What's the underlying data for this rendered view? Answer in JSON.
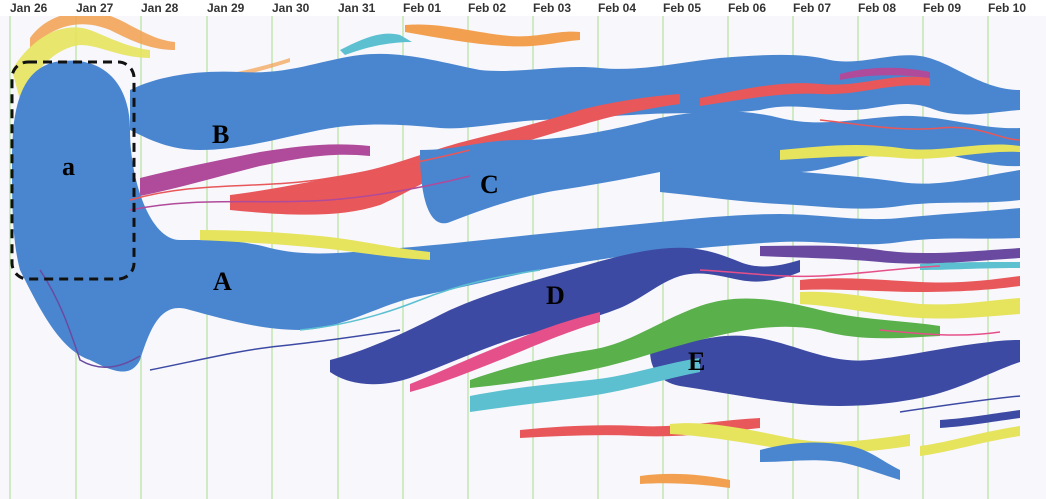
{
  "timeline": {
    "dates": [
      "Jan 26",
      "Jan 27",
      "Jan 28",
      "Jan 29",
      "Jan 30",
      "Jan 31",
      "Feb 01",
      "Feb 02",
      "Feb 03",
      "Feb 04",
      "Feb 05",
      "Feb 06",
      "Feb 07",
      "Feb 08",
      "Feb 09",
      "Feb 10"
    ]
  },
  "annotations": {
    "a": "a",
    "A": "A",
    "B": "B",
    "C": "C",
    "D": "D",
    "E": "E"
  },
  "colors": {
    "background": "#f7f7fc",
    "gridline": "#a8dc8c",
    "blue": "#4a86cf",
    "navy": "#3d4aa3",
    "red": "#e8575a",
    "magenta": "#b04a9a",
    "pink": "#e6508a",
    "yellow": "#e6e35c",
    "orange": "#f2a04f",
    "green": "#5ab04a",
    "cyan": "#5cc0d0",
    "purple": "#6a4aa0"
  }
}
